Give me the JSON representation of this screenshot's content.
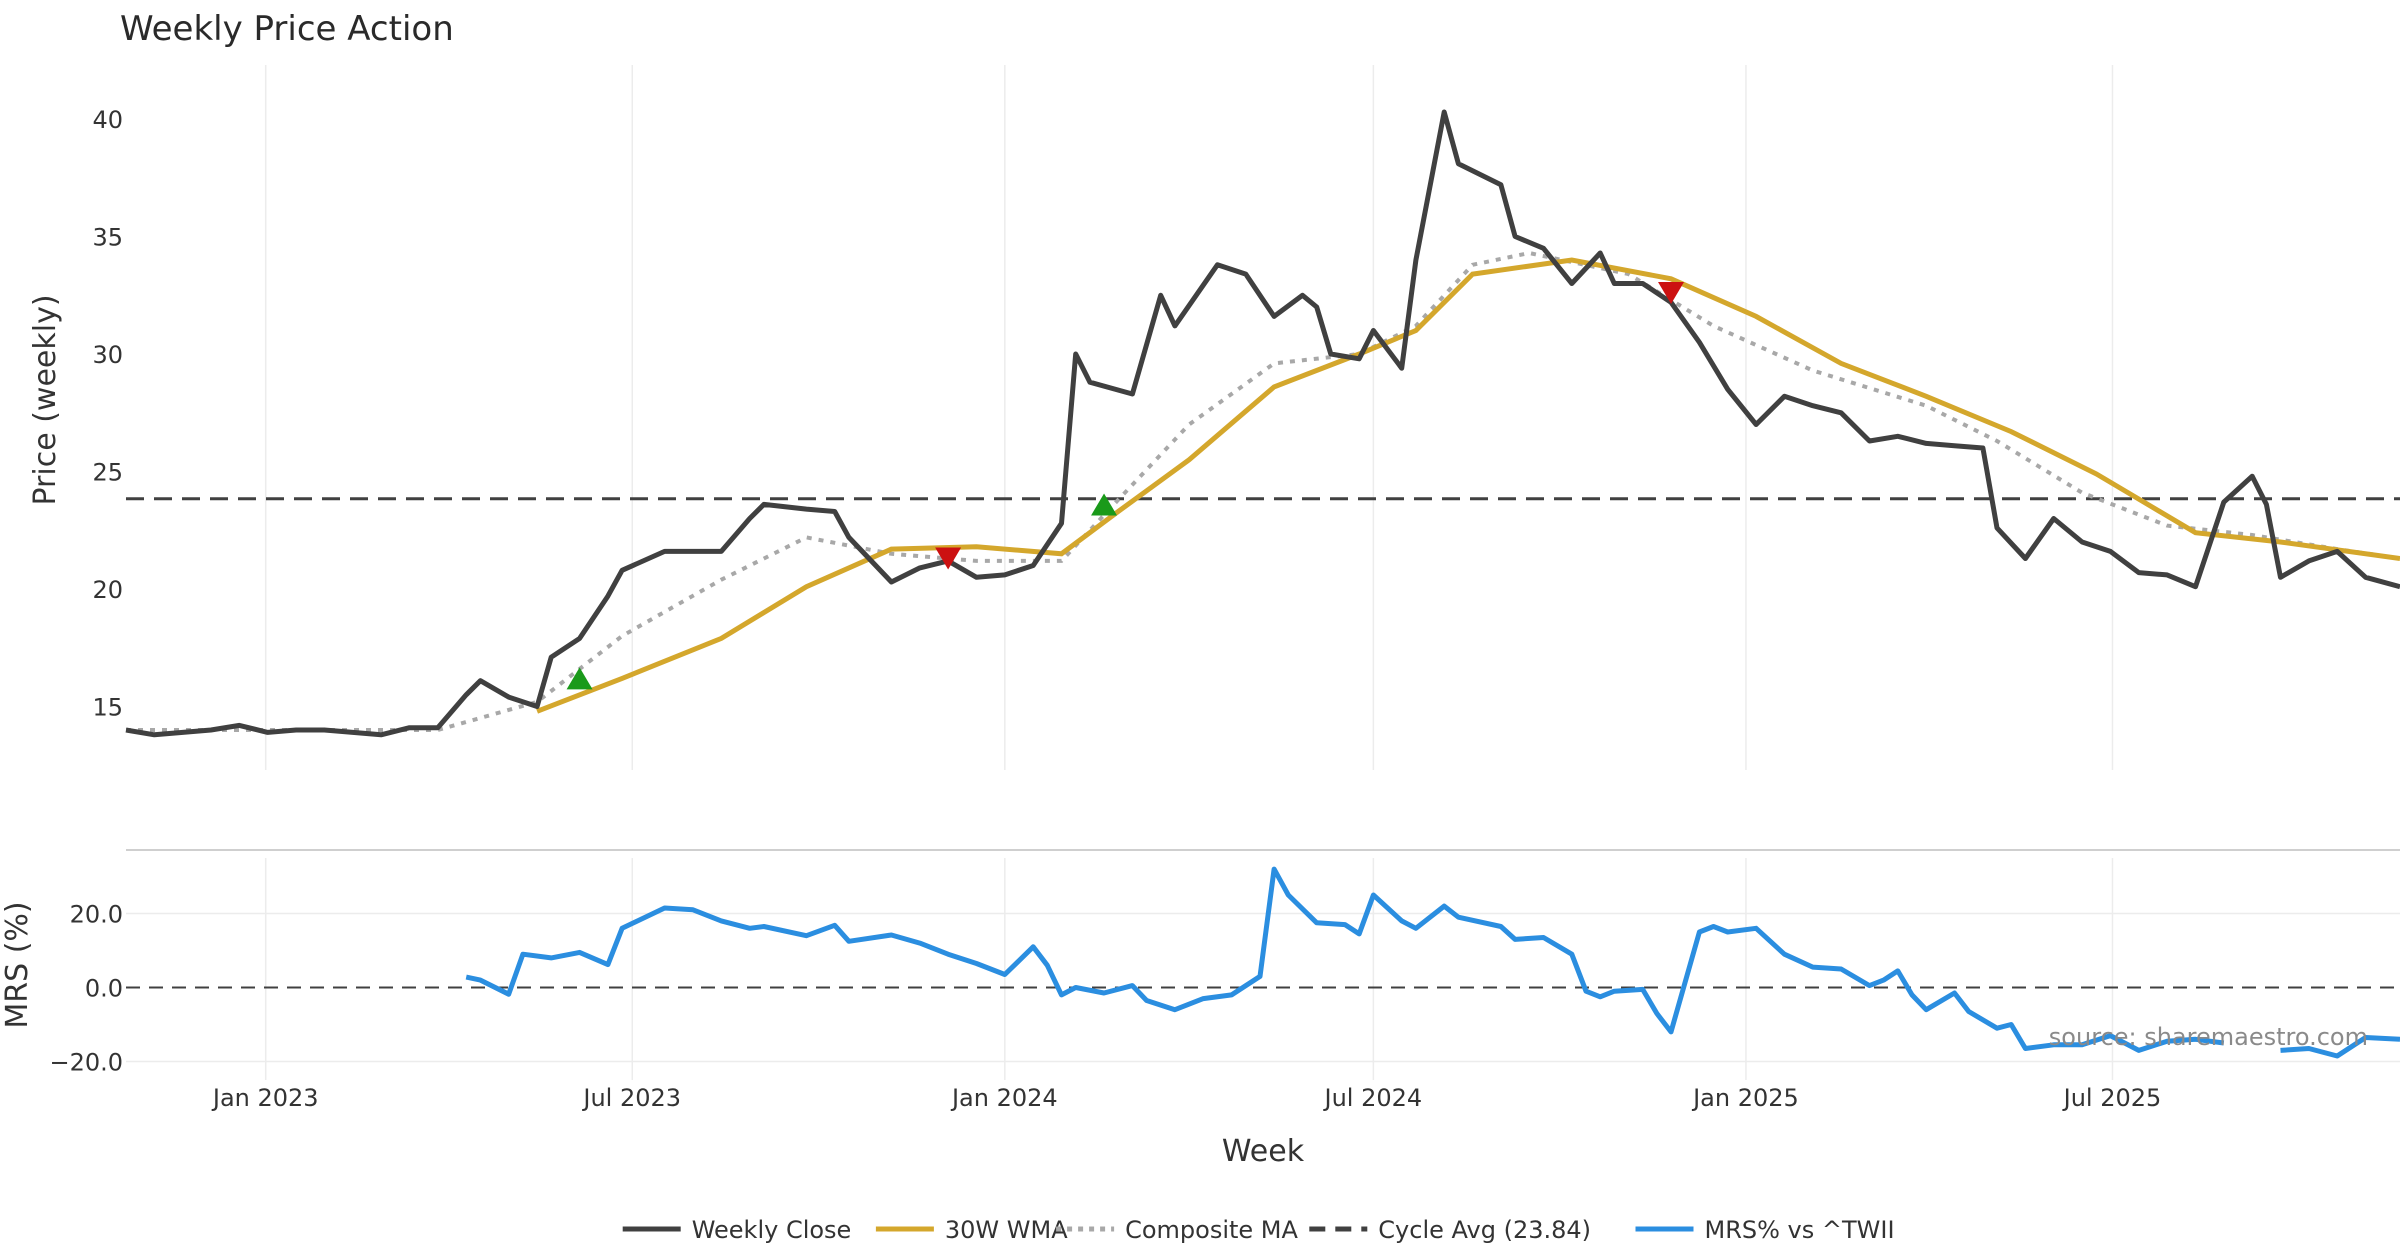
{
  "chart_data": {
    "type": "line",
    "title": "Weekly Price Action",
    "xlabel": "Week",
    "x_ticks": [
      "Jan 2023",
      "Jul 2023",
      "Jan 2024",
      "Jul 2024",
      "Jan 2025",
      "Jul 2025"
    ],
    "x_tick_dates": [
      "2023-01-01",
      "2023-07-01",
      "2024-01-01",
      "2024-07-01",
      "2025-01-01",
      "2025-07-01"
    ],
    "x_range": [
      "2022-10-24",
      "2025-11-20"
    ],
    "grid": "vertical",
    "legend_placement": "bottom-center",
    "source": "source: sharemaestro.com",
    "price_panel": {
      "ylabel": "Price (weekly)",
      "ylim": [
        12.3,
        42.3
      ],
      "y_ticks": [
        "15",
        "20",
        "25",
        "30",
        "35",
        "40"
      ],
      "cycle_avg": 23.84,
      "series": [
        {
          "name": "Weekly Close",
          "color": "#404040",
          "style": "solid",
          "points": [
            [
              "2022-10-24",
              14.0
            ],
            [
              "2022-11-07",
              13.8
            ],
            [
              "2022-11-21",
              13.9
            ],
            [
              "2022-12-05",
              14.0
            ],
            [
              "2022-12-19",
              14.2
            ],
            [
              "2023-01-02",
              13.9
            ],
            [
              "2023-01-16",
              14.0
            ],
            [
              "2023-01-30",
              14.0
            ],
            [
              "2023-02-13",
              13.9
            ],
            [
              "2023-02-27",
              13.8
            ],
            [
              "2023-03-13",
              14.1
            ],
            [
              "2023-03-27",
              14.1
            ],
            [
              "2023-04-10",
              15.5
            ],
            [
              "2023-04-17",
              16.1
            ],
            [
              "2023-05-01",
              15.4
            ],
            [
              "2023-05-15",
              15.0
            ],
            [
              "2023-05-22",
              17.1
            ],
            [
              "2023-06-05",
              17.9
            ],
            [
              "2023-06-19",
              19.7
            ],
            [
              "2023-06-26",
              20.8
            ],
            [
              "2023-07-17",
              21.6
            ],
            [
              "2023-07-31",
              21.6
            ],
            [
              "2023-08-14",
              21.6
            ],
            [
              "2023-08-28",
              23.0
            ],
            [
              "2023-09-04",
              23.6
            ],
            [
              "2023-09-25",
              23.4
            ],
            [
              "2023-10-09",
              23.3
            ],
            [
              "2023-10-16",
              22.2
            ],
            [
              "2023-11-06",
              20.3
            ],
            [
              "2023-11-20",
              20.9
            ],
            [
              "2023-12-04",
              21.2
            ],
            [
              "2023-12-18",
              20.5
            ],
            [
              "2024-01-01",
              20.6
            ],
            [
              "2024-01-15",
              21.0
            ],
            [
              "2024-01-29",
              22.8
            ],
            [
              "2024-02-05",
              30.0
            ],
            [
              "2024-02-12",
              28.8
            ],
            [
              "2024-03-04",
              28.3
            ],
            [
              "2024-03-18",
              32.5
            ],
            [
              "2024-03-25",
              31.2
            ],
            [
              "2024-04-15",
              33.8
            ],
            [
              "2024-04-29",
              33.4
            ],
            [
              "2024-05-13",
              31.6
            ],
            [
              "2024-05-27",
              32.5
            ],
            [
              "2024-06-03",
              32.0
            ],
            [
              "2024-06-10",
              30.0
            ],
            [
              "2024-06-24",
              29.8
            ],
            [
              "2024-07-01",
              31.0
            ],
            [
              "2024-07-15",
              29.4
            ],
            [
              "2024-07-22",
              34.0
            ],
            [
              "2024-08-05",
              40.3
            ],
            [
              "2024-08-12",
              38.1
            ],
            [
              "2024-09-02",
              37.2
            ],
            [
              "2024-09-09",
              35.0
            ],
            [
              "2024-09-23",
              34.5
            ],
            [
              "2024-10-07",
              33.0
            ],
            [
              "2024-10-21",
              34.3
            ],
            [
              "2024-10-28",
              33.0
            ],
            [
              "2024-11-11",
              33.0
            ],
            [
              "2024-11-25",
              32.2
            ],
            [
              "2024-12-09",
              30.5
            ],
            [
              "2024-12-23",
              28.5
            ],
            [
              "2025-01-06",
              27.0
            ],
            [
              "2025-01-20",
              28.2
            ],
            [
              "2025-02-03",
              27.8
            ],
            [
              "2025-02-17",
              27.5
            ],
            [
              "2025-03-03",
              26.3
            ],
            [
              "2025-03-17",
              26.5
            ],
            [
              "2025-03-31",
              26.2
            ],
            [
              "2025-04-14",
              26.1
            ],
            [
              "2025-04-28",
              26.0
            ],
            [
              "2025-05-05",
              22.6
            ],
            [
              "2025-05-19",
              21.3
            ],
            [
              "2025-06-02",
              23.0
            ],
            [
              "2025-06-16",
              22.0
            ],
            [
              "2025-06-30",
              21.6
            ],
            [
              "2025-07-14",
              20.7
            ],
            [
              "2025-07-28",
              20.6
            ],
            [
              "2025-08-11",
              20.1
            ],
            [
              "2025-08-25",
              23.7
            ],
            [
              "2025-09-08",
              24.8
            ],
            [
              "2025-09-15",
              23.6
            ],
            [
              "2025-09-22",
              20.5
            ],
            [
              "2025-10-06",
              21.2
            ],
            [
              "2025-10-20",
              21.6
            ],
            [
              "2025-11-03",
              20.5
            ],
            [
              "2025-11-20",
              20.1
            ]
          ]
        },
        {
          "name": "30W WMA",
          "color": "#d4a72c",
          "style": "solid",
          "points": [
            [
              "2023-05-15",
              14.8
            ],
            [
              "2023-06-26",
              16.2
            ],
            [
              "2023-08-14",
              17.9
            ],
            [
              "2023-09-25",
              20.1
            ],
            [
              "2023-11-06",
              21.7
            ],
            [
              "2023-12-18",
              21.8
            ],
            [
              "2024-01-29",
              21.5
            ],
            [
              "2024-02-26",
              23.3
            ],
            [
              "2024-04-01",
              25.5
            ],
            [
              "2024-05-13",
              28.6
            ],
            [
              "2024-06-24",
              30.0
            ],
            [
              "2024-07-22",
              31.0
            ],
            [
              "2024-08-19",
              33.4
            ],
            [
              "2024-10-07",
              34.0
            ],
            [
              "2024-11-25",
              33.2
            ],
            [
              "2025-01-06",
              31.6
            ],
            [
              "2025-02-17",
              29.6
            ],
            [
              "2025-03-31",
              28.2
            ],
            [
              "2025-05-12",
              26.7
            ],
            [
              "2025-06-23",
              24.9
            ],
            [
              "2025-08-11",
              22.4
            ],
            [
              "2025-09-22",
              22.0
            ],
            [
              "2025-11-20",
              21.3
            ]
          ]
        },
        {
          "name": "Composite MA",
          "color": "#a8a8a8",
          "style": "dotted",
          "points": [
            [
              "2022-10-24",
              14.0
            ],
            [
              "2023-01-16",
              14.0
            ],
            [
              "2023-03-27",
              14.0
            ],
            [
              "2023-05-15",
              15.2
            ],
            [
              "2023-06-26",
              18.0
            ],
            [
              "2023-08-14",
              20.4
            ],
            [
              "2023-09-25",
              22.2
            ],
            [
              "2023-11-06",
              21.5
            ],
            [
              "2023-12-18",
              21.2
            ],
            [
              "2024-01-29",
              21.2
            ],
            [
              "2024-02-26",
              23.8
            ],
            [
              "2024-04-01",
              27.0
            ],
            [
              "2024-05-13",
              29.6
            ],
            [
              "2024-06-24",
              30.0
            ],
            [
              "2024-07-22",
              31.2
            ],
            [
              "2024-08-19",
              33.8
            ],
            [
              "2024-09-16",
              34.3
            ],
            [
              "2024-11-04",
              33.4
            ],
            [
              "2024-12-16",
              31.2
            ],
            [
              "2025-02-03",
              29.3
            ],
            [
              "2025-03-31",
              27.8
            ],
            [
              "2025-05-05",
              26.3
            ],
            [
              "2025-06-16",
              24.1
            ],
            [
              "2025-07-28",
              22.7
            ],
            [
              "2025-09-08",
              22.3
            ],
            [
              "2025-10-20",
              21.7
            ],
            [
              "2025-11-20",
              21.3
            ]
          ]
        }
      ],
      "buy_signals": [
        [
          "2023-06-05",
          16.2
        ],
        [
          "2024-02-19",
          23.6
        ]
      ],
      "sell_signals": [
        [
          "2023-12-04",
          21.3
        ],
        [
          "2024-11-25",
          32.6
        ]
      ],
      "signal_colors": {
        "buy": "#1a9a1a",
        "sell": "#cc1111"
      }
    },
    "mrs_panel": {
      "ylabel": "MRS (%)",
      "ylim": [
        -25,
        35
      ],
      "y_ticks": [
        "20.0",
        "0.0",
        "−20.0"
      ],
      "y_tick_values": [
        20,
        0,
        -20
      ],
      "series": [
        {
          "name": "MRS% vs ^TWII",
          "color": "#2b8ee0",
          "style": "solid",
          "points": [
            [
              "2023-04-10",
              2.8
            ],
            [
              "2023-04-17",
              2.0
            ],
            [
              "2023-05-01",
              -1.8
            ],
            [
              "2023-05-08",
              9.0
            ],
            [
              "2023-05-22",
              8.0
            ],
            [
              "2023-06-05",
              9.5
            ],
            [
              "2023-06-19",
              6.2
            ],
            [
              "2023-06-26",
              16.0
            ],
            [
              "2023-07-17",
              21.5
            ],
            [
              "2023-07-31",
              21.0
            ],
            [
              "2023-08-14",
              18.0
            ],
            [
              "2023-08-28",
              16.0
            ],
            [
              "2023-09-04",
              16.5
            ],
            [
              "2023-09-25",
              14.0
            ],
            [
              "2023-10-09",
              16.8
            ],
            [
              "2023-10-16",
              12.5
            ],
            [
              "2023-11-06",
              14.2
            ],
            [
              "2023-11-20",
              12.0
            ],
            [
              "2023-12-04",
              9.0
            ],
            [
              "2023-12-18",
              6.5
            ],
            [
              "2024-01-01",
              3.5
            ],
            [
              "2024-01-15",
              11.0
            ],
            [
              "2024-01-22",
              6.0
            ],
            [
              "2024-01-29",
              -2.0
            ],
            [
              "2024-02-05",
              0.0
            ],
            [
              "2024-02-19",
              -1.5
            ],
            [
              "2024-03-04",
              0.5
            ],
            [
              "2024-03-11",
              -3.5
            ],
            [
              "2024-03-25",
              -6.0
            ],
            [
              "2024-04-08",
              -3.0
            ],
            [
              "2024-04-22",
              -2.0
            ],
            [
              "2024-05-06",
              3.0
            ],
            [
              "2024-05-13",
              32.0
            ],
            [
              "2024-05-20",
              25.0
            ],
            [
              "2024-06-03",
              17.5
            ],
            [
              "2024-06-17",
              17.0
            ],
            [
              "2024-06-24",
              14.5
            ],
            [
              "2024-07-01",
              25.0
            ],
            [
              "2024-07-15",
              18.0
            ],
            [
              "2024-07-22",
              16.0
            ],
            [
              "2024-08-05",
              22.0
            ],
            [
              "2024-08-12",
              19.0
            ],
            [
              "2024-09-02",
              16.5
            ],
            [
              "2024-09-09",
              13.0
            ],
            [
              "2024-09-23",
              13.5
            ],
            [
              "2024-10-07",
              9.0
            ],
            [
              "2024-10-14",
              -1.0
            ],
            [
              "2024-10-21",
              -2.5
            ],
            [
              "2024-10-28",
              -1.0
            ],
            [
              "2024-11-11",
              -0.5
            ],
            [
              "2024-11-18",
              -7.0
            ],
            [
              "2024-11-25",
              -12.0
            ],
            [
              "2024-12-09",
              15.0
            ],
            [
              "2024-12-16",
              16.5
            ],
            [
              "2024-12-23",
              15.0
            ],
            [
              "2025-01-06",
              16.0
            ],
            [
              "2025-01-20",
              9.0
            ],
            [
              "2025-02-03",
              5.5
            ],
            [
              "2025-02-17",
              5.0
            ],
            [
              "2025-03-03",
              0.5
            ],
            [
              "2025-03-10",
              2.0
            ],
            [
              "2025-03-17",
              4.5
            ],
            [
              "2025-03-24",
              -2.0
            ],
            [
              "2025-03-31",
              -6.0
            ],
            [
              "2025-04-14",
              -1.5
            ],
            [
              "2025-04-21",
              -6.5
            ],
            [
              "2025-05-05",
              -11.0
            ],
            [
              "2025-05-12",
              -10.0
            ],
            [
              "2025-05-19",
              -16.5
            ],
            [
              "2025-06-02",
              -15.5
            ],
            [
              "2025-06-16",
              -15.5
            ],
            [
              "2025-06-30",
              -13.0
            ],
            [
              "2025-07-14",
              -17.0
            ],
            [
              "2025-07-28",
              -14.5
            ],
            [
              "2025-08-11",
              -14.0
            ],
            [
              "2025-08-25",
              -15.0
            ],
            [
              null,
              null
            ],
            [
              "2025-09-22",
              -17.0
            ],
            [
              "2025-10-06",
              -16.5
            ],
            [
              "2025-10-20",
              -18.5
            ],
            [
              "2025-11-03",
              -13.5
            ],
            [
              "2025-11-20",
              -14.0
            ]
          ]
        }
      ]
    },
    "legend": [
      {
        "label": "Weekly Close",
        "color": "#404040",
        "style": "solid"
      },
      {
        "label": "30W WMA",
        "color": "#d4a72c",
        "style": "solid"
      },
      {
        "label": "Composite MA",
        "color": "#a8a8a8",
        "style": "dotted"
      },
      {
        "label": "Cycle Avg (23.84)",
        "color": "#404040",
        "style": "dashed"
      },
      {
        "label": "MRS% vs ^TWII",
        "color": "#2b8ee0",
        "style": "solid"
      }
    ]
  }
}
